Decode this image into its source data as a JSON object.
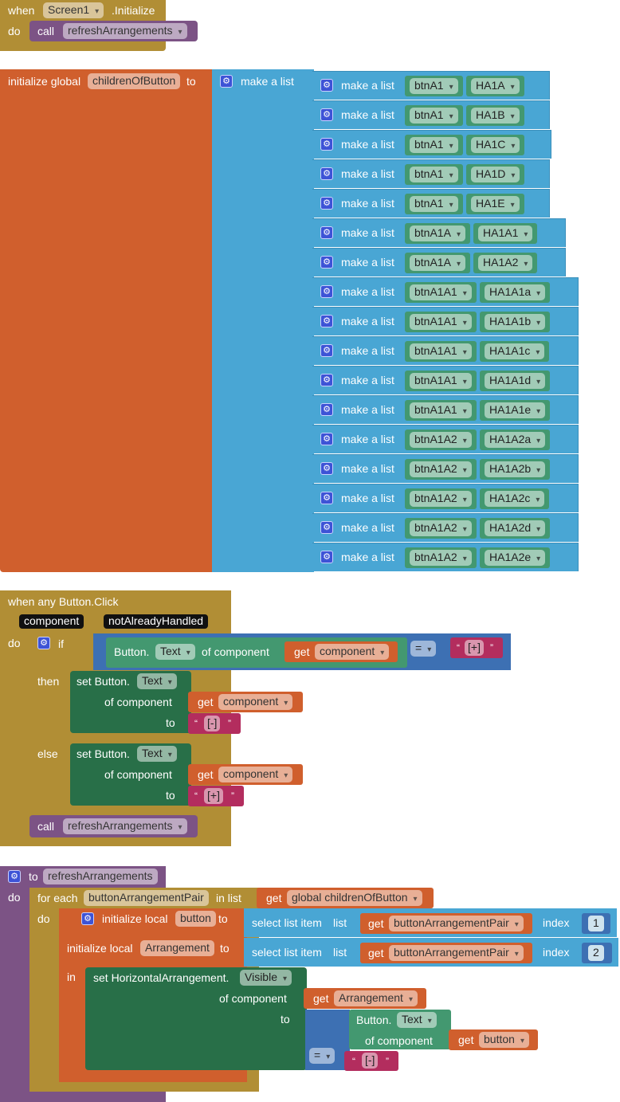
{
  "block1": {
    "when": "when",
    "component": "Screen1",
    "event": ".Initialize",
    "do": "do",
    "call": "call",
    "procedure": "refreshArrangements"
  },
  "block2": {
    "init": "initialize global",
    "var_name": "childrenOfButton",
    "to": "to",
    "make_a_list": "make a list",
    "rows": [
      {
        "a": "btnA1",
        "b": "HA1A"
      },
      {
        "a": "btnA1",
        "b": "HA1B"
      },
      {
        "a": "btnA1",
        "b": "HA1C"
      },
      {
        "a": "btnA1",
        "b": "HA1D"
      },
      {
        "a": "btnA1",
        "b": "HA1E"
      },
      {
        "a": "btnA1A",
        "b": "HA1A1"
      },
      {
        "a": "btnA1A",
        "b": "HA1A2"
      },
      {
        "a": "btnA1A1",
        "b": "HA1A1a"
      },
      {
        "a": "btnA1A1",
        "b": "HA1A1b"
      },
      {
        "a": "btnA1A1",
        "b": "HA1A1c"
      },
      {
        "a": "btnA1A1",
        "b": "HA1A1d"
      },
      {
        "a": "btnA1A1",
        "b": "HA1A1e"
      },
      {
        "a": "btnA1A2",
        "b": "HA1A2a"
      },
      {
        "a": "btnA1A2",
        "b": "HA1A2b"
      },
      {
        "a": "btnA1A2",
        "b": "HA1A2c"
      },
      {
        "a": "btnA1A2",
        "b": "HA1A2d"
      },
      {
        "a": "btnA1A2",
        "b": "HA1A2e"
      }
    ]
  },
  "block3": {
    "header": "when any Button.Click",
    "param1": "component",
    "param2": "notAlreadyHandled",
    "do": "do",
    "if": "if",
    "button_prefix": "Button.",
    "prop_text": "Text",
    "of_component": "of component",
    "get": "get",
    "component_var": "component",
    "equals": "=",
    "plus_str": "[+]",
    "then": "then",
    "set_button": "set Button.",
    "to": "to",
    "minus_str": "[-]",
    "else": "else",
    "call": "call",
    "procedure": "refreshArrangements"
  },
  "block4": {
    "to": "to",
    "procedure": "refreshArrangements",
    "do": "do",
    "for_each": "for each",
    "loop_var": "buttonArrangementPair",
    "in_list": "in list",
    "get": "get",
    "global_var": "global childrenOfButton",
    "do_inner": "do",
    "init_local": "initialize local",
    "local_button": "button",
    "local_arrangement": "Arrangement",
    "to_kw": "to",
    "select_list_item": "select list item",
    "list_kw": "list",
    "index_kw": "index",
    "index1": "1",
    "index2": "2",
    "in_kw": "in",
    "set_ha": "set HorizontalArrangement.",
    "prop_visible": "Visible",
    "of_component": "of component",
    "button_prefix": "Button.",
    "prop_text": "Text",
    "equals": "=",
    "minus_str": "[-]"
  }
}
